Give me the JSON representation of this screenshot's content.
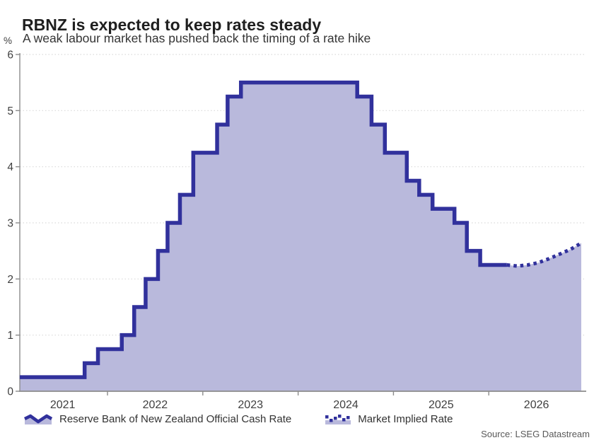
{
  "chart_data": {
    "type": "area",
    "title": "RBNZ is expected to keep rates steady",
    "subtitle": "A weak labour market has pushed back the timing of a rate hike",
    "ylabel": "%",
    "xlabel": "",
    "ylim": [
      0,
      6
    ],
    "yticks": [
      0,
      1,
      2,
      3,
      4,
      5,
      6
    ],
    "xlim": [
      2021.08,
      2027.0
    ],
    "xtick_boundaries": [
      2022,
      2023,
      2024,
      2025,
      2026
    ],
    "xtick_labels": [
      {
        "text": "2021",
        "pos": 2021.53
      },
      {
        "text": "2022",
        "pos": 2022.5
      },
      {
        "text": "2023",
        "pos": 2023.5
      },
      {
        "text": "2024",
        "pos": 2024.5
      },
      {
        "text": "2025",
        "pos": 2025.5
      },
      {
        "text": "2026",
        "pos": 2026.5
      }
    ],
    "grid": "dotted horizontal lines at each integer, y-axis left, x-axis bottom",
    "legend_position": "bottom",
    "colors": {
      "line": "#31319c",
      "fill": "#b9b9dc",
      "axis": "#8c8c8c",
      "grid": "#d9d9d9",
      "tick_text": "#3f3f3f"
    },
    "series": [
      {
        "name": "Reserve Bank of New Zealand Official Cash Rate",
        "style": "step-solid",
        "points_note": "step-after: [decimal_year_of_change, new_rate_%]; last point marks end of solid history",
        "points": [
          [
            2021.08,
            0.25
          ],
          [
            2021.76,
            0.5
          ],
          [
            2021.9,
            0.75
          ],
          [
            2022.15,
            1.0
          ],
          [
            2022.28,
            1.5
          ],
          [
            2022.4,
            2.0
          ],
          [
            2022.53,
            2.5
          ],
          [
            2022.63,
            3.0
          ],
          [
            2022.76,
            3.5
          ],
          [
            2022.9,
            4.25
          ],
          [
            2023.15,
            4.75
          ],
          [
            2023.26,
            5.25
          ],
          [
            2023.4,
            5.5
          ],
          [
            2024.62,
            5.25
          ],
          [
            2024.77,
            4.75
          ],
          [
            2024.91,
            4.25
          ],
          [
            2025.14,
            3.75
          ],
          [
            2025.27,
            3.5
          ],
          [
            2025.41,
            3.25
          ],
          [
            2025.64,
            3.0
          ],
          [
            2025.77,
            2.5
          ],
          [
            2025.91,
            2.25
          ],
          [
            2026.19,
            2.25
          ]
        ]
      },
      {
        "name": "Market Implied Rate",
        "style": "dotted-line",
        "points": [
          [
            2026.19,
            2.25
          ],
          [
            2026.3,
            2.23
          ],
          [
            2026.41,
            2.25
          ],
          [
            2026.52,
            2.29
          ],
          [
            2026.63,
            2.36
          ],
          [
            2026.74,
            2.44
          ],
          [
            2026.86,
            2.53
          ],
          [
            2026.97,
            2.64
          ]
        ]
      }
    ]
  },
  "legend": {
    "items": [
      {
        "label": "Reserve Bank of New Zealand Official Cash Rate",
        "swatch": "solid-area-wave-icon"
      },
      {
        "label": "Market Implied Rate",
        "swatch": "dotted-wave-icon"
      }
    ]
  },
  "footer": {
    "source": "Source: LSEG Datastream"
  }
}
